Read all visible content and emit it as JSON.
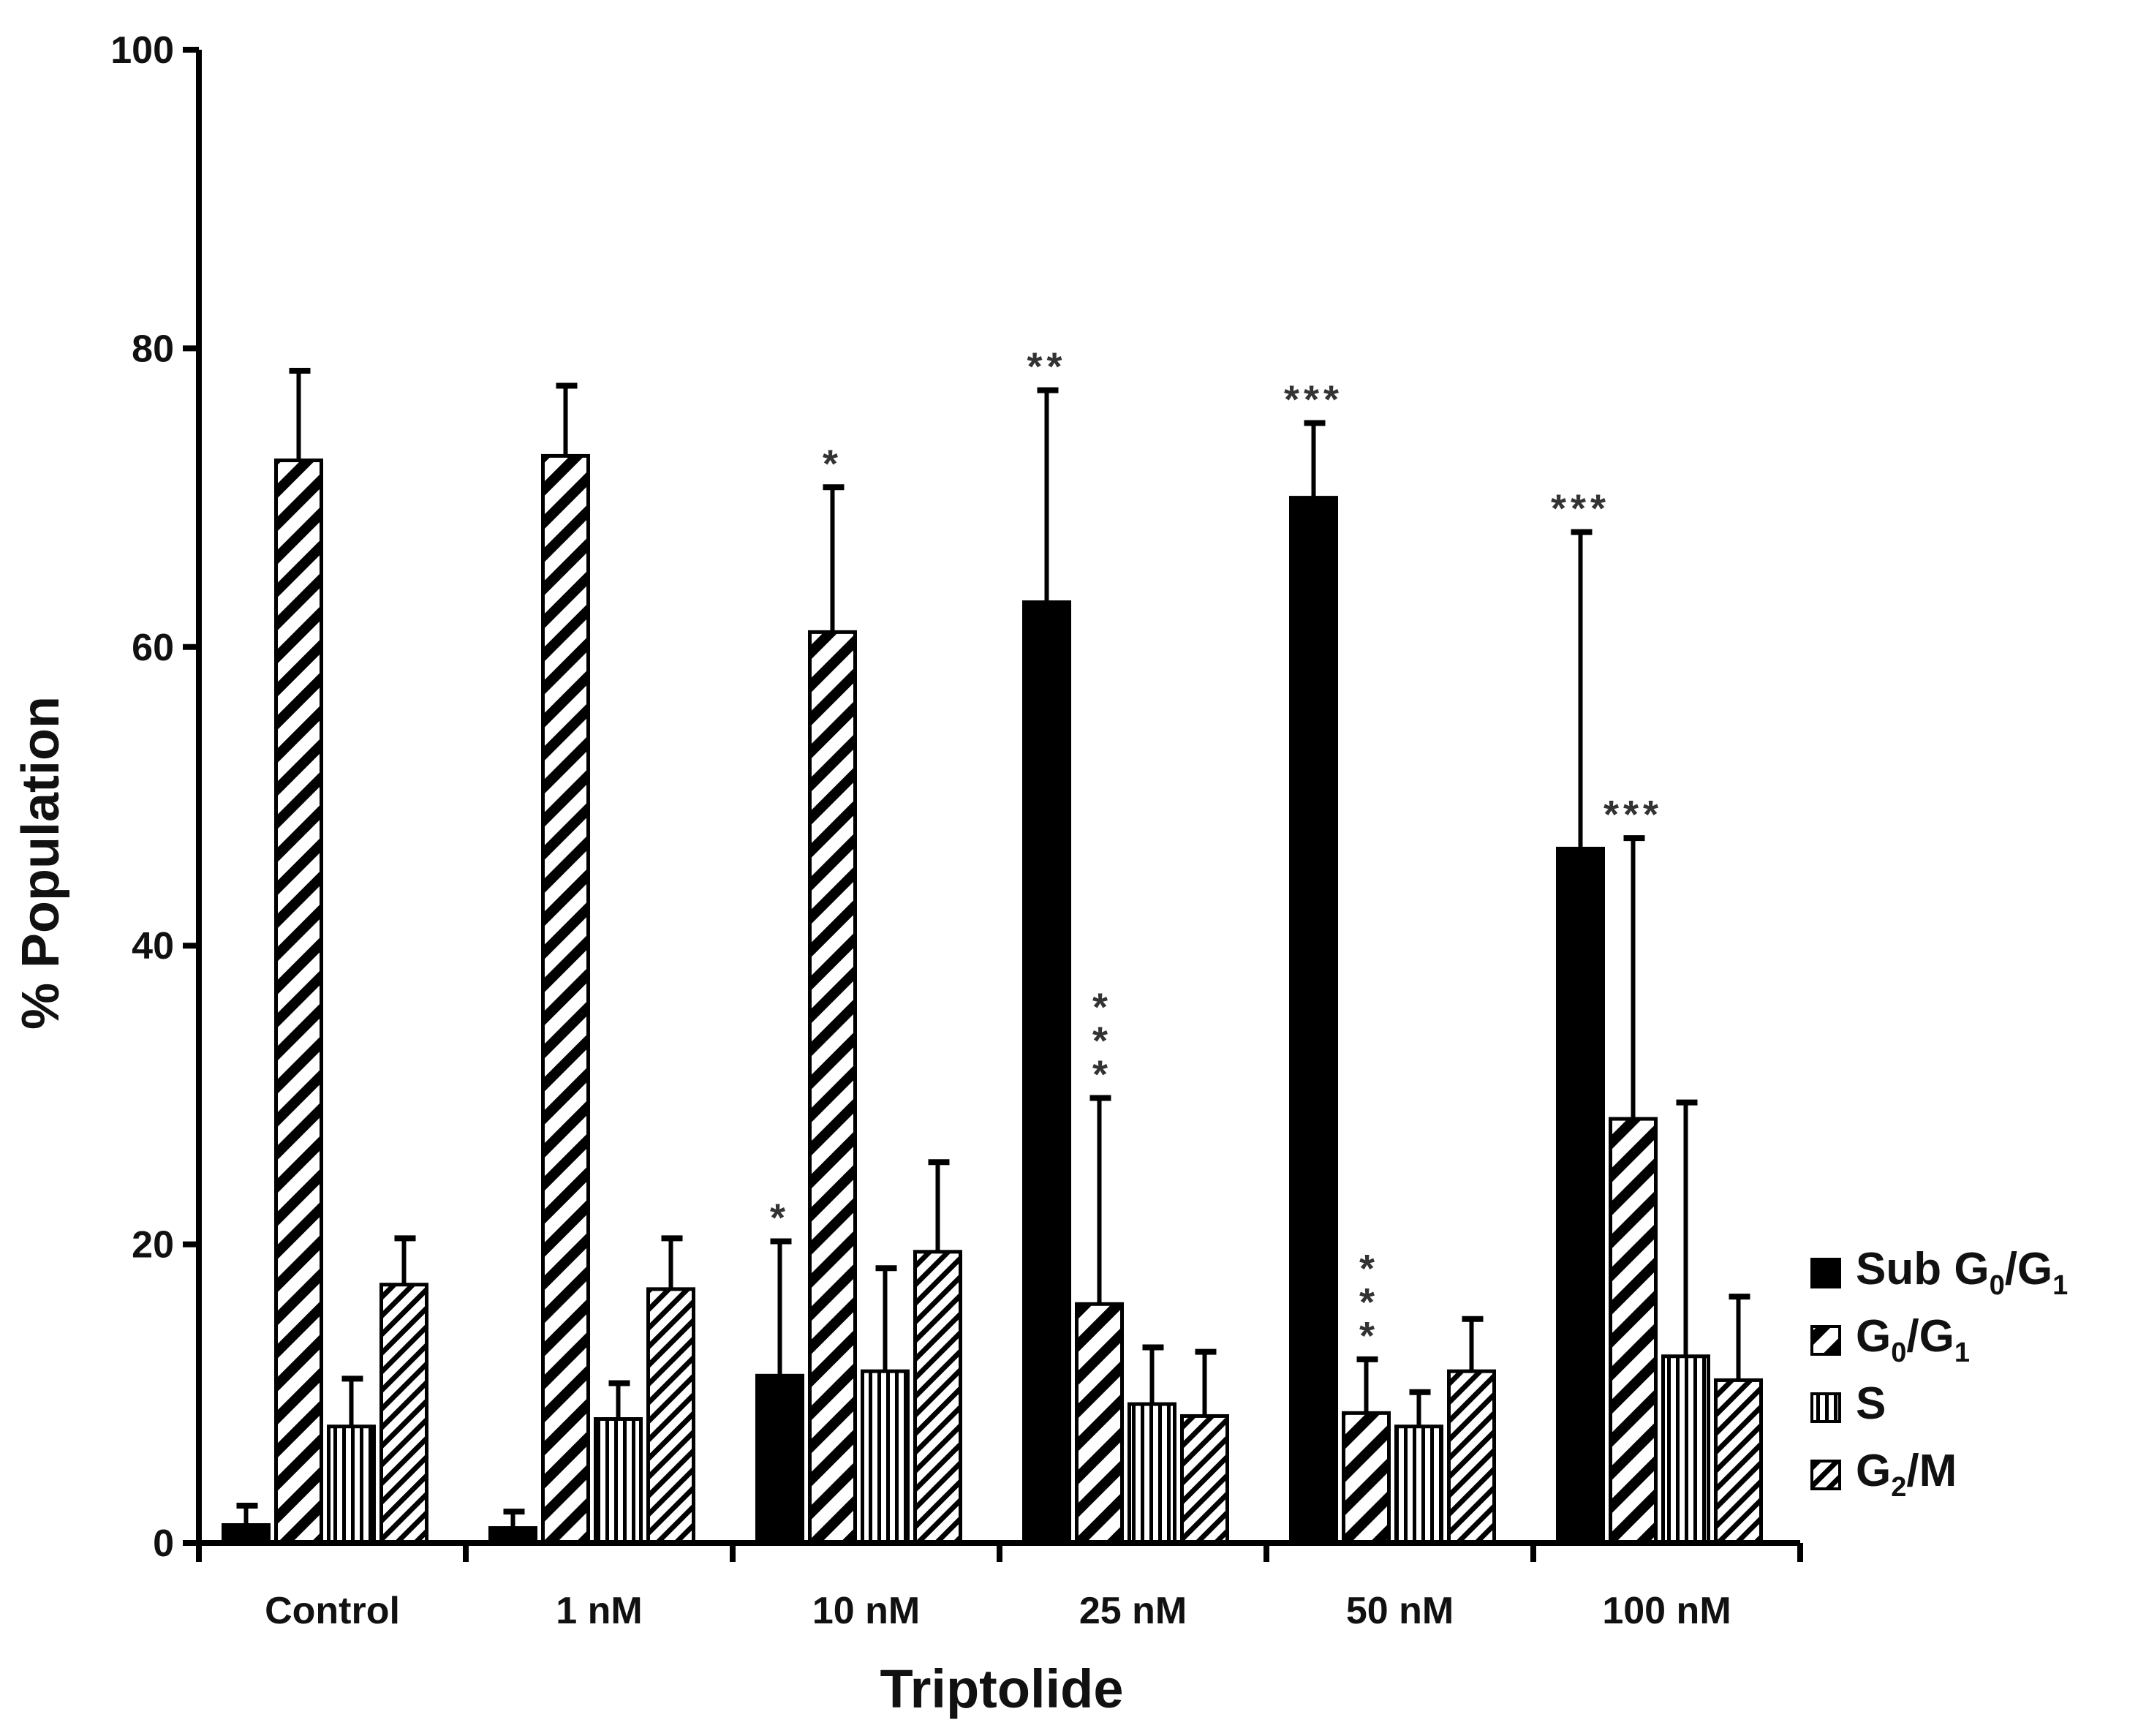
{
  "chart_data": {
    "type": "bar",
    "title": "",
    "xlabel": "Triptolide",
    "ylabel": "% Population",
    "ylim": [
      0,
      100
    ],
    "yticks": [
      "0",
      "20",
      "40",
      "60",
      "80",
      "100"
    ],
    "categories": [
      "Control",
      "1 nM",
      "10 nM",
      "25 nM",
      "50 nM",
      "100 nM"
    ],
    "series": [
      {
        "name": "Sub G0/G1",
        "label_main": "Sub G",
        "label_parts": [
          "Sub G",
          "0",
          "/G",
          "1"
        ],
        "pattern": "solid",
        "values": [
          1.2,
          1.0,
          11.2,
          63.0,
          70.0,
          46.5
        ],
        "errors": [
          1.3,
          1.1,
          9.0,
          14.2,
          5.0,
          21.2
        ]
      },
      {
        "name": "G0/G1",
        "label_parts": [
          "G",
          "0",
          "/G",
          "1"
        ],
        "pattern": "diag-down",
        "values": [
          72.5,
          72.8,
          61.0,
          16.0,
          8.7,
          28.4
        ],
        "errors": [
          6.0,
          4.7,
          9.7,
          13.8,
          3.6,
          18.8
        ]
      },
      {
        "name": "S",
        "label_parts": [
          "S"
        ],
        "pattern": "vertical",
        "values": [
          7.8,
          8.3,
          11.5,
          9.3,
          7.8,
          12.5
        ],
        "errors": [
          3.2,
          2.4,
          6.9,
          3.8,
          2.3,
          17.0
        ]
      },
      {
        "name": "G2/M",
        "label_parts": [
          "G",
          "2",
          "/M"
        ],
        "pattern": "diag-dense",
        "values": [
          17.3,
          17.0,
          19.5,
          8.5,
          11.5,
          10.9
        ],
        "errors": [
          3.1,
          3.4,
          6.0,
          4.3,
          3.5,
          5.6
        ]
      }
    ],
    "significance": [
      {
        "category": "10 nM",
        "series": "Sub G0/G1",
        "text": "*"
      },
      {
        "category": "10 nM",
        "series": "G0/G1",
        "text": "*"
      },
      {
        "category": "25 nM",
        "series": "Sub G0/G1",
        "text": "**"
      },
      {
        "category": "25 nM",
        "series": "G0/G1",
        "text": "***",
        "orientation": "vertical"
      },
      {
        "category": "50 nM",
        "series": "Sub G0/G1",
        "text": "***"
      },
      {
        "category": "50 nM",
        "series": "G0/G1",
        "text": "***",
        "orientation": "vertical"
      },
      {
        "category": "100 nM",
        "series": "Sub G0/G1",
        "text": "***"
      },
      {
        "category": "100 nM",
        "series": "G0/G1",
        "text": "***"
      }
    ],
    "legend_position": "right"
  }
}
